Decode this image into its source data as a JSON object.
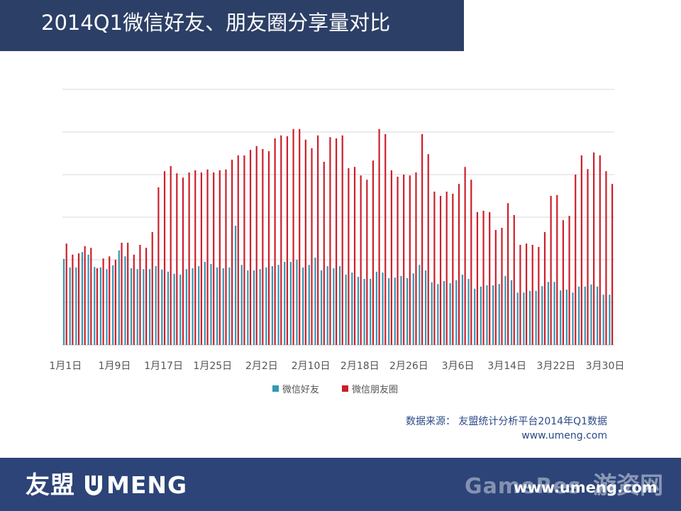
{
  "header": {
    "title": "2014Q1微信好友、朋友圈分享量对比"
  },
  "source": {
    "line1": "数据来源： 友盟统计分析平台2014年Q1数据",
    "line2": "www.umeng.com"
  },
  "footer": {
    "logo_cn": "友盟",
    "logo_en": "MENG",
    "url": "www.umeng.com",
    "watermark_left": "GameRes",
    "watermark_right": "游资网"
  },
  "colors": {
    "friends": "#3399b3",
    "moments": "#cc1f2b",
    "grid": "#d9d9d9",
    "axis_text": "#555555"
  },
  "chart_data": {
    "type": "bar",
    "title": "2014Q1微信好友、朋友圈分享量对比",
    "xlabel": "",
    "ylabel": "",
    "ylim": [
      0,
      6
    ],
    "grid": true,
    "legend_position": "bottom",
    "categories": [
      "1月1日",
      "1月2日",
      "1月3日",
      "1月4日",
      "1月5日",
      "1月6日",
      "1月7日",
      "1月8日",
      "1月9日",
      "1月10日",
      "1月11日",
      "1月12日",
      "1月13日",
      "1月14日",
      "1月15日",
      "1月16日",
      "1月17日",
      "1月18日",
      "1月19日",
      "1月20日",
      "1月21日",
      "1月22日",
      "1月23日",
      "1月24日",
      "1月25日",
      "1月26日",
      "1月27日",
      "1月28日",
      "1月29日",
      "1月30日",
      "1月31日",
      "2月1日",
      "2月2日",
      "2月3日",
      "2月4日",
      "2月5日",
      "2月6日",
      "2月7日",
      "2月8日",
      "2月9日",
      "2月10日",
      "2月11日",
      "2月12日",
      "2月13日",
      "2月14日",
      "2月15日",
      "2月16日",
      "2月17日",
      "2月18日",
      "2月19日",
      "2月20日",
      "2月21日",
      "2月22日",
      "2月23日",
      "2月24日",
      "2月25日",
      "2月26日",
      "2月27日",
      "2月28日",
      "3月1日",
      "3月2日",
      "3月3日",
      "3月4日",
      "3月5日",
      "3月6日",
      "3月7日",
      "3月8日",
      "3月9日",
      "3月10日",
      "3月11日",
      "3月12日",
      "3月13日",
      "3月14日",
      "3月15日",
      "3月16日",
      "3月17日",
      "3月18日",
      "3月19日",
      "3月20日",
      "3月21日",
      "3月22日",
      "3月23日",
      "3月24日",
      "3月25日",
      "3月26日",
      "3月27日",
      "3月28日",
      "3月29日",
      "3月30日",
      "3月31日"
    ],
    "tick_labels": [
      "1月1日",
      "1月9日",
      "1月17日",
      "1月25日",
      "2月2日",
      "2月10日",
      "2月18日",
      "2月26日",
      "3月6日",
      "3月14日",
      "3月22日",
      "3月30日"
    ],
    "tick_every": 8,
    "series": [
      {
        "name": "微信好友",
        "values": [
          2.02,
          1.82,
          1.82,
          2.18,
          2.12,
          1.83,
          1.82,
          1.78,
          1.87,
          2.22,
          2.08,
          1.8,
          1.78,
          1.78,
          1.78,
          1.85,
          1.77,
          1.72,
          1.67,
          1.65,
          1.78,
          1.8,
          1.85,
          1.95,
          1.9,
          1.82,
          1.8,
          1.82,
          2.8,
          1.88,
          1.75,
          1.75,
          1.78,
          1.82,
          1.85,
          1.88,
          1.95,
          1.95,
          2.0,
          1.82,
          1.88,
          2.05,
          1.75,
          1.85,
          1.8,
          1.85,
          1.65,
          1.7,
          1.6,
          1.55,
          1.55,
          1.72,
          1.7,
          1.57,
          1.58,
          1.62,
          1.57,
          1.68,
          1.88,
          1.75,
          1.47,
          1.43,
          1.5,
          1.45,
          1.52,
          1.65,
          1.55,
          1.32,
          1.37,
          1.4,
          1.4,
          1.43,
          1.62,
          1.52,
          1.23,
          1.23,
          1.27,
          1.27,
          1.38,
          1.48,
          1.48,
          1.28,
          1.3,
          1.23,
          1.37,
          1.37,
          1.42,
          1.37,
          1.18,
          1.18
        ]
      },
      {
        "name": "微信朋友圈",
        "values": [
          2.38,
          2.12,
          2.15,
          2.32,
          2.28,
          1.8,
          2.03,
          2.08,
          2.0,
          2.4,
          2.4,
          2.12,
          2.35,
          2.28,
          2.65,
          3.7,
          4.08,
          4.2,
          4.03,
          3.93,
          4.05,
          4.1,
          4.05,
          4.12,
          4.05,
          4.1,
          4.12,
          4.35,
          4.45,
          4.45,
          4.58,
          4.67,
          4.6,
          4.55,
          4.85,
          4.92,
          4.9,
          5.07,
          5.07,
          4.82,
          4.62,
          4.92,
          4.3,
          4.88,
          4.85,
          4.92,
          4.15,
          4.18,
          3.98,
          3.88,
          4.33,
          5.07,
          4.95,
          4.1,
          3.95,
          4.0,
          3.98,
          4.05,
          4.95,
          4.48,
          3.6,
          3.5,
          3.6,
          3.55,
          3.78,
          4.18,
          3.88,
          3.12,
          3.15,
          3.12,
          2.7,
          2.75,
          3.33,
          3.05,
          2.35,
          2.38,
          2.35,
          2.3,
          2.65,
          3.5,
          3.52,
          2.93,
          3.03,
          4.0,
          4.45,
          4.13,
          4.52,
          4.45,
          4.08,
          3.78
        ]
      }
    ]
  }
}
